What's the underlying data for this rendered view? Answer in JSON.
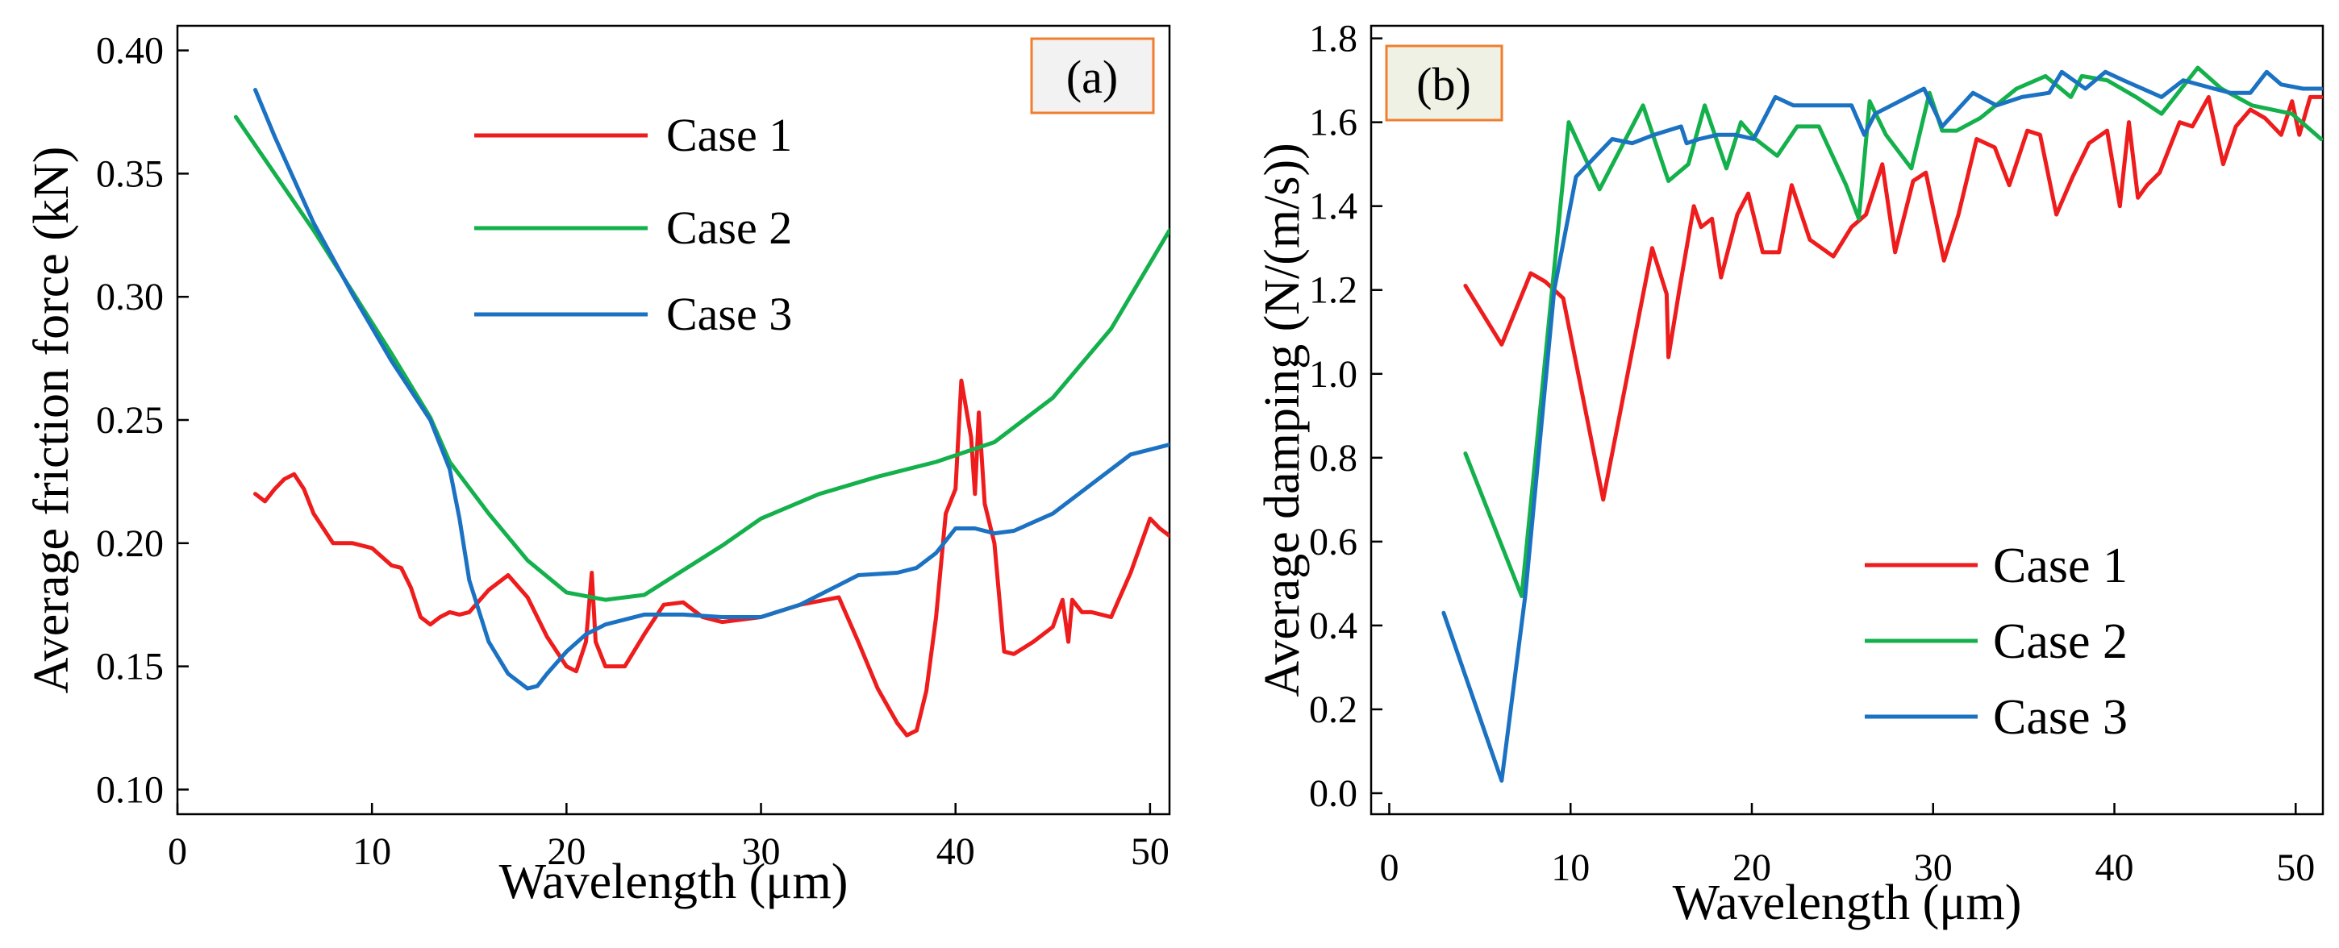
{
  "chart_data": [
    {
      "type": "line",
      "panel_label": "(a)",
      "title": "",
      "xlabel": "Wavelength (μm)",
      "ylabel": "Average friction force (kN)",
      "xlim": [
        0,
        51
      ],
      "ylim": [
        0.09,
        0.41
      ],
      "xticks": [
        0,
        10,
        20,
        30,
        40,
        50
      ],
      "xtick_labels": [
        "0",
        "10",
        "20",
        "30",
        "40",
        "50"
      ],
      "yticks": [
        0.1,
        0.15,
        0.2,
        0.25,
        0.3,
        0.35,
        0.4
      ],
      "ytick_labels": [
        "0.10",
        "0.15",
        "0.20",
        "0.25",
        "0.30",
        "0.35",
        "0.40"
      ],
      "grid": false,
      "legend_position": "top-center",
      "series": [
        {
          "name": "Case 1",
          "color": "#ee1c1c",
          "x": [
            4.0,
            4.5,
            5.0,
            5.5,
            6.0,
            6.5,
            7.0,
            8.0,
            9.0,
            10.0,
            11.0,
            11.5,
            12.0,
            12.5,
            13.0,
            13.5,
            14.0,
            14.5,
            15.0,
            16.0,
            17.0,
            18.0,
            19.0,
            20.0,
            20.5,
            21.0,
            21.3,
            21.5,
            22.0,
            23.0,
            24.0,
            25.0,
            26.0,
            27.0,
            28.0,
            30.0,
            32.0,
            34.0,
            35.0,
            36.0,
            37.0,
            37.5,
            38.0,
            38.5,
            39.0,
            39.5,
            40.0,
            40.3,
            40.8,
            41.0,
            41.2,
            41.5,
            42.0,
            42.5,
            43.0,
            44.0,
            45.0,
            45.5,
            45.8,
            46.0,
            46.5,
            47.0,
            48.0,
            49.0,
            50.0,
            50.5,
            51.0
          ],
          "y": [
            0.22,
            0.217,
            0.222,
            0.226,
            0.228,
            0.222,
            0.212,
            0.2,
            0.2,
            0.198,
            0.191,
            0.19,
            0.182,
            0.17,
            0.167,
            0.17,
            0.172,
            0.171,
            0.172,
            0.181,
            0.187,
            0.178,
            0.162,
            0.15,
            0.148,
            0.16,
            0.188,
            0.16,
            0.15,
            0.15,
            0.163,
            0.175,
            0.176,
            0.17,
            0.168,
            0.17,
            0.175,
            0.178,
            0.16,
            0.141,
            0.127,
            0.122,
            0.124,
            0.14,
            0.17,
            0.212,
            0.222,
            0.266,
            0.243,
            0.22,
            0.253,
            0.216,
            0.2,
            0.156,
            0.155,
            0.16,
            0.166,
            0.177,
            0.16,
            0.177,
            0.172,
            0.172,
            0.17,
            0.188,
            0.21,
            0.206,
            0.203
          ]
        },
        {
          "name": "Case 2",
          "color": "#14b04c",
          "x": [
            3.0,
            5.0,
            7.0,
            9.0,
            11.0,
            13.0,
            14.0,
            16.0,
            18.0,
            20.0,
            22.0,
            24.0,
            26.0,
            28.0,
            30.0,
            33.0,
            36.0,
            39.0,
            42.0,
            45.0,
            48.0,
            51.0
          ],
          "y": [
            0.373,
            0.35,
            0.327,
            0.302,
            0.277,
            0.251,
            0.233,
            0.212,
            0.193,
            0.18,
            0.177,
            0.179,
            0.189,
            0.199,
            0.21,
            0.22,
            0.227,
            0.233,
            0.241,
            0.259,
            0.287,
            0.327
          ]
        },
        {
          "name": "Case 3",
          "color": "#1b72c2",
          "x": [
            4.0,
            5.0,
            7.0,
            9.0,
            11.0,
            13.0,
            14.0,
            14.5,
            15.0,
            16.0,
            17.0,
            18.0,
            18.5,
            19.0,
            20.0,
            21.0,
            22.0,
            24.0,
            26.0,
            28.0,
            30.0,
            32.0,
            34.0,
            35.0,
            37.0,
            38.0,
            39.0,
            40.0,
            41.0,
            42.0,
            43.0,
            45.0,
            47.0,
            49.0,
            51.0
          ],
          "y": [
            0.384,
            0.365,
            0.33,
            0.301,
            0.274,
            0.25,
            0.23,
            0.21,
            0.185,
            0.16,
            0.147,
            0.141,
            0.142,
            0.147,
            0.156,
            0.163,
            0.167,
            0.171,
            0.171,
            0.17,
            0.17,
            0.175,
            0.183,
            0.187,
            0.188,
            0.19,
            0.196,
            0.206,
            0.206,
            0.204,
            0.205,
            0.212,
            0.224,
            0.236,
            0.24
          ]
        }
      ]
    },
    {
      "type": "line",
      "panel_label": "(b)",
      "title": "",
      "xlabel": "Wavelength (μm)",
      "ylabel": "Average damping (N/(m/s))",
      "xlim": [
        -1,
        51.5
      ],
      "ylim": [
        -0.05,
        1.83
      ],
      "xticks": [
        0,
        10,
        20,
        30,
        40,
        50
      ],
      "xtick_labels": [
        "0",
        "10",
        "20",
        "30",
        "40",
        "50"
      ],
      "yticks": [
        0.0,
        0.2,
        0.4,
        0.6,
        0.8,
        1.0,
        1.2,
        1.4,
        1.6,
        1.8
      ],
      "ytick_labels": [
        "0.0",
        "0.2",
        "0.4",
        "0.6",
        "0.8",
        "1.0",
        "1.2",
        "1.4",
        "1.6",
        "1.8"
      ],
      "grid": false,
      "legend_position": "bottom-right",
      "series": [
        {
          "name": "Case 1",
          "color": "#ee1c1c",
          "x": [
            4.2,
            6.2,
            7.8,
            8.6,
            9.6,
            11.8,
            14.5,
            15.3,
            15.4,
            16.0,
            16.8,
            17.2,
            17.8,
            18.3,
            19.2,
            19.8,
            20.6,
            21.5,
            22.2,
            23.2,
            24.5,
            25.5,
            26.3,
            27.2,
            27.9,
            28.9,
            29.6,
            30.6,
            31.4,
            32.4,
            33.4,
            34.2,
            35.2,
            35.9,
            36.8,
            37.7,
            38.6,
            39.6,
            40.3,
            40.8,
            41.3,
            41.8,
            42.5,
            43.6,
            44.3,
            45.2,
            46.0,
            46.7,
            47.5,
            48.3,
            49.2,
            49.8,
            50.2,
            50.8,
            51.4
          ],
          "y": [
            1.21,
            1.07,
            1.24,
            1.22,
            1.18,
            0.7,
            1.3,
            1.19,
            1.04,
            1.2,
            1.4,
            1.35,
            1.37,
            1.23,
            1.38,
            1.43,
            1.29,
            1.29,
            1.45,
            1.32,
            1.28,
            1.35,
            1.38,
            1.5,
            1.29,
            1.46,
            1.48,
            1.27,
            1.38,
            1.56,
            1.54,
            1.45,
            1.58,
            1.57,
            1.38,
            1.47,
            1.55,
            1.58,
            1.4,
            1.6,
            1.42,
            1.45,
            1.48,
            1.6,
            1.59,
            1.66,
            1.5,
            1.59,
            1.63,
            1.61,
            1.57,
            1.65,
            1.57,
            1.66,
            1.66
          ]
        },
        {
          "name": "Case 2",
          "color": "#14b04c",
          "x": [
            4.2,
            7.3,
            9.9,
            11.6,
            14.0,
            15.4,
            16.5,
            17.4,
            18.6,
            19.4,
            20.2,
            21.4,
            22.5,
            23.7,
            25.2,
            25.9,
            26.5,
            27.4,
            28.8,
            29.8,
            30.5,
            31.3,
            32.6,
            34.6,
            36.2,
            37.6,
            38.2,
            39.6,
            41.2,
            42.6,
            44.6,
            45.9,
            47.6,
            49.8,
            51.4
          ],
          "y": [
            0.81,
            0.47,
            1.6,
            1.44,
            1.64,
            1.46,
            1.5,
            1.64,
            1.49,
            1.6,
            1.56,
            1.52,
            1.59,
            1.59,
            1.45,
            1.37,
            1.65,
            1.57,
            1.49,
            1.67,
            1.58,
            1.58,
            1.61,
            1.68,
            1.71,
            1.66,
            1.71,
            1.7,
            1.66,
            1.62,
            1.73,
            1.68,
            1.64,
            1.62,
            1.56
          ]
        },
        {
          "name": "Case 3",
          "color": "#1b72c2",
          "x": [
            3.0,
            6.2,
            7.5,
            9.1,
            10.3,
            12.3,
            13.4,
            14.6,
            16.1,
            16.4,
            17.1,
            18.1,
            19.1,
            20.1,
            21.3,
            22.3,
            23.5,
            25.5,
            26.2,
            26.8,
            29.5,
            30.5,
            32.2,
            33.5,
            34.9,
            36.4,
            37.1,
            38.4,
            39.5,
            40.5,
            42.6,
            43.8,
            45.5,
            46.4,
            47.5,
            48.4,
            49.2,
            50.4,
            51.4
          ],
          "y": [
            0.43,
            0.03,
            0.47,
            1.2,
            1.47,
            1.56,
            1.55,
            1.57,
            1.59,
            1.55,
            1.56,
            1.57,
            1.57,
            1.56,
            1.66,
            1.64,
            1.64,
            1.64,
            1.57,
            1.62,
            1.68,
            1.59,
            1.67,
            1.64,
            1.66,
            1.67,
            1.72,
            1.68,
            1.72,
            1.7,
            1.66,
            1.7,
            1.68,
            1.67,
            1.67,
            1.72,
            1.69,
            1.68,
            1.68
          ]
        }
      ]
    }
  ]
}
